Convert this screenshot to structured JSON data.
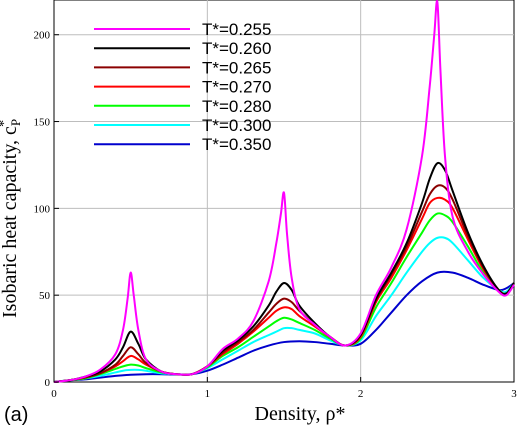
{
  "chart_data": {
    "type": "line",
    "panel_label": "(a)",
    "xlabel": "Density, ρ*",
    "ylabel": "Isobaric heat capacity, c",
    "ylabel_sub": "P",
    "ylabel_sup": "*",
    "xlim": [
      0,
      3
    ],
    "ylim": [
      0,
      220
    ],
    "xticks": [
      "0",
      "1",
      "2",
      "3"
    ],
    "yticks": [
      "0",
      "50",
      "100",
      "150",
      "200"
    ],
    "grid": true,
    "legend_position": "top-left",
    "series": [
      {
        "name": "T*=0.255",
        "color": "#ff00ff",
        "x": [
          0,
          0.1,
          0.2,
          0.3,
          0.4,
          0.45,
          0.48,
          0.5,
          0.52,
          0.55,
          0.6,
          0.7,
          0.8,
          0.9,
          1.0,
          1.1,
          1.2,
          1.3,
          1.4,
          1.45,
          1.48,
          1.5,
          1.52,
          1.55,
          1.6,
          1.7,
          1.8,
          1.9,
          2.0,
          2.1,
          2.2,
          2.3,
          2.4,
          2.45,
          2.48,
          2.5,
          2.52,
          2.55,
          2.6,
          2.7,
          2.8,
          2.9,
          2.95,
          3.0
        ],
        "y": [
          0,
          1,
          3,
          7,
          16,
          30,
          48,
          63,
          50,
          30,
          13,
          6,
          4.5,
          4.5,
          9,
          19,
          25,
          35,
          58,
          80,
          97,
          109,
          85,
          60,
          42,
          33,
          26,
          21,
          28,
          50,
          66,
          88,
          130,
          170,
          200,
          219,
          180,
          130,
          95,
          75,
          62,
          52,
          50,
          56
        ]
      },
      {
        "name": "T*=0.260",
        "color": "#000000",
        "x": [
          0,
          0.1,
          0.2,
          0.3,
          0.4,
          0.45,
          0.5,
          0.55,
          0.6,
          0.7,
          0.8,
          0.9,
          1.0,
          1.1,
          1.2,
          1.3,
          1.4,
          1.45,
          1.5,
          1.55,
          1.6,
          1.7,
          1.8,
          1.9,
          2.0,
          2.1,
          2.2,
          2.3,
          2.4,
          2.45,
          2.5,
          2.55,
          2.6,
          2.7,
          2.8,
          2.9,
          2.95,
          3.0
        ],
        "y": [
          0,
          1,
          3,
          6,
          13,
          20,
          29,
          22,
          13,
          6,
          4.5,
          4.5,
          9,
          18,
          24,
          32,
          44,
          52,
          57,
          53,
          44,
          34,
          26,
          21,
          27,
          48,
          63,
          80,
          103,
          117,
          126,
          122,
          110,
          86,
          67,
          53,
          51,
          57
        ]
      },
      {
        "name": "T*=0.265",
        "color": "#8b0000",
        "x": [
          0,
          0.1,
          0.2,
          0.3,
          0.4,
          0.45,
          0.5,
          0.55,
          0.6,
          0.7,
          0.8,
          0.9,
          1.0,
          1.1,
          1.2,
          1.3,
          1.4,
          1.45,
          1.5,
          1.55,
          1.6,
          1.7,
          1.8,
          1.9,
          2.0,
          2.1,
          2.2,
          2.3,
          2.4,
          2.45,
          2.5,
          2.55,
          2.6,
          2.7,
          2.8,
          2.9,
          2.95,
          3.0
        ],
        "y": [
          0,
          1,
          2.5,
          5,
          10,
          15,
          20,
          16,
          11,
          6,
          4.5,
          4.5,
          9,
          17,
          23,
          30,
          40,
          45,
          48,
          46,
          41,
          33,
          26,
          21,
          27,
          47,
          62,
          78,
          98,
          108,
          113,
          112,
          105,
          84,
          66,
          53,
          51,
          57
        ]
      },
      {
        "name": "T*=0.270",
        "color": "#ff0000",
        "x": [
          0,
          0.1,
          0.2,
          0.3,
          0.4,
          0.45,
          0.5,
          0.55,
          0.6,
          0.7,
          0.8,
          0.9,
          1.0,
          1.1,
          1.2,
          1.3,
          1.4,
          1.45,
          1.5,
          1.55,
          1.6,
          1.7,
          1.8,
          1.9,
          2.0,
          2.1,
          2.2,
          2.3,
          2.4,
          2.45,
          2.5,
          2.55,
          2.6,
          2.7,
          2.8,
          2.9,
          2.95,
          3.0
        ],
        "y": [
          0,
          1,
          2.5,
          5,
          9,
          12,
          15,
          13,
          10,
          6,
          4.5,
          4.5,
          9,
          16,
          22,
          29,
          37,
          41,
          43,
          42,
          38,
          32,
          26,
          21,
          26,
          46,
          60,
          76,
          94,
          103,
          106,
          105,
          100,
          82,
          65,
          53,
          51,
          57
        ]
      },
      {
        "name": "T*=0.280",
        "color": "#00ff00",
        "x": [
          0,
          0.1,
          0.2,
          0.3,
          0.4,
          0.45,
          0.5,
          0.55,
          0.6,
          0.7,
          0.8,
          0.9,
          1.0,
          1.1,
          1.2,
          1.3,
          1.4,
          1.45,
          1.5,
          1.55,
          1.6,
          1.7,
          1.8,
          1.9,
          2.0,
          2.1,
          2.2,
          2.3,
          2.4,
          2.45,
          2.5,
          2.55,
          2.6,
          2.7,
          2.8,
          2.9,
          2.95,
          3.0
        ],
        "y": [
          0,
          1,
          2,
          4.5,
          7.5,
          9,
          10,
          9.5,
          8,
          5.5,
          4.5,
          4.5,
          8.5,
          15,
          20,
          26,
          32,
          35,
          37,
          36,
          34,
          30,
          25,
          21,
          25,
          43,
          57,
          72,
          86,
          93,
          97,
          96,
          92,
          78,
          63,
          53,
          51,
          57
        ]
      },
      {
        "name": "T*=0.300",
        "color": "#00ffff",
        "x": [
          0,
          0.1,
          0.2,
          0.3,
          0.4,
          0.45,
          0.5,
          0.55,
          0.6,
          0.7,
          0.8,
          0.9,
          1.0,
          1.1,
          1.2,
          1.3,
          1.4,
          1.45,
          1.5,
          1.55,
          1.6,
          1.7,
          1.8,
          1.9,
          2.0,
          2.1,
          2.2,
          2.3,
          2.4,
          2.45,
          2.5,
          2.55,
          2.6,
          2.7,
          2.8,
          2.9,
          2.95,
          3.0
        ],
        "y": [
          0,
          1,
          2,
          3.5,
          5.5,
          6.5,
          7,
          7,
          6.5,
          5,
          4.5,
          4.5,
          8,
          13,
          18,
          23,
          27,
          29,
          31,
          31,
          30,
          28,
          24,
          21,
          24,
          38,
          50,
          63,
          75,
          80,
          83,
          83,
          80,
          70,
          60,
          53,
          52,
          57
        ]
      },
      {
        "name": "T*=0.350",
        "color": "#0000cd",
        "x": [
          0,
          0.1,
          0.2,
          0.3,
          0.4,
          0.5,
          0.6,
          0.7,
          0.8,
          0.9,
          1.0,
          1.1,
          1.2,
          1.3,
          1.4,
          1.5,
          1.6,
          1.7,
          1.8,
          1.9,
          2.0,
          2.1,
          2.2,
          2.3,
          2.4,
          2.5,
          2.6,
          2.7,
          2.8,
          2.9,
          2.95,
          3.0
        ],
        "y": [
          0,
          1,
          1.5,
          2.5,
          3.5,
          4.2,
          4.5,
          4.5,
          4.3,
          4.5,
          6.5,
          10,
          14,
          18,
          21,
          23,
          23.5,
          23,
          22,
          21,
          22,
          30,
          40,
          50,
          58,
          63,
          63,
          60,
          56,
          53,
          54,
          57
        ]
      }
    ]
  }
}
